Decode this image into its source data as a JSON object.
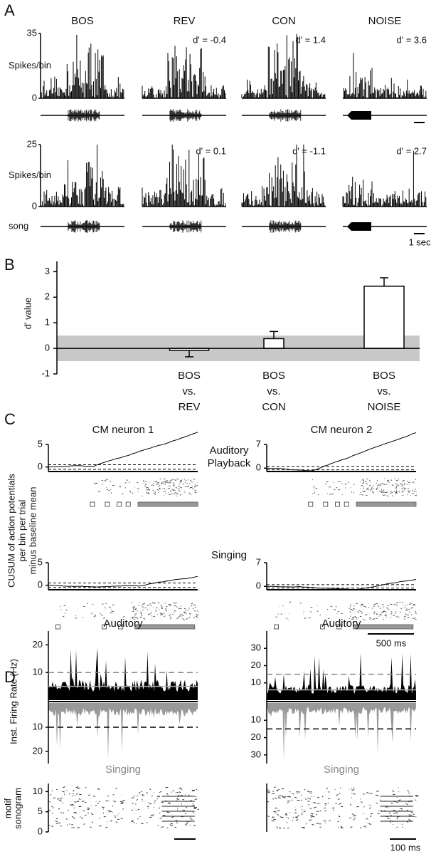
{
  "chart_data": [
    {
      "type": "psth-grid",
      "panel": "A",
      "stimuli": [
        "BOS",
        "REV",
        "CON",
        "NOISE"
      ],
      "rows": [
        {
          "ylabel": "Spikes/bin",
          "ylim": [
            0,
            35
          ],
          "yticks": [
            0,
            35
          ],
          "dprime_labels": [
            null,
            "d' = -0.4",
            "d' = 1.4",
            "d' = 3.6"
          ]
        },
        {
          "ylabel": "Spikes/bin",
          "ylim": [
            0,
            25
          ],
          "yticks": [
            0,
            25
          ],
          "dprime_labels": [
            null,
            "d' = 0.1",
            "d' = -1.1",
            "d' = 2.7"
          ]
        }
      ],
      "stimulus_label": "song",
      "scale_bar": "1 sec"
    },
    {
      "type": "bar",
      "panel": "B",
      "ylabel": "d' value",
      "categories": [
        [
          "BOS",
          "vs.",
          "REV"
        ],
        [
          "BOS",
          "vs.",
          "CON"
        ],
        [
          "BOS",
          "vs.",
          "NOISE"
        ]
      ],
      "values": [
        -0.08,
        0.38,
        2.43
      ],
      "errors": [
        0.25,
        0.28,
        0.33
      ],
      "ylim": [
        -1,
        3.4
      ],
      "yticks": [
        -1,
        0,
        1,
        2,
        3
      ],
      "band": [
        -0.5,
        0.5
      ],
      "color": "#ffffff",
      "band_color": "#c8c8c8"
    },
    {
      "type": "cusum",
      "panel": "C",
      "ylabel": [
        "CUSUM of action potentials",
        "per bin per trial",
        "minus baseline mean"
      ],
      "neurons": [
        {
          "title": "CM neuron 1",
          "ylim": [
            -1,
            5
          ],
          "yticks": [
            0,
            5
          ]
        },
        {
          "title": "CM neuron 2",
          "ylim": [
            -1,
            7
          ],
          "yticks": [
            0,
            7
          ]
        }
      ],
      "conditions": [
        [
          "Auditory",
          "Playback"
        ],
        [
          "Singing"
        ]
      ],
      "dashed_lines": [
        0.5,
        -0.5
      ],
      "scale_bar": "500 ms"
    },
    {
      "type": "firing-rate",
      "panel": "D",
      "ylabel": "Inst. Firing Rate (Hz)",
      "upper_label": "Auditory",
      "lower_label": "Singing",
      "neurons": [
        {
          "upper_ylim": [
            0,
            25
          ],
          "upper_yticks": [
            10,
            20
          ],
          "lower_ylim": [
            0,
            25
          ],
          "lower_yticks": [
            10,
            20
          ],
          "threshold": 10,
          "mean": 5
        },
        {
          "upper_ylim": [
            0,
            40
          ],
          "upper_yticks": [
            10,
            20,
            30
          ],
          "lower_ylim": [
            0,
            35
          ],
          "lower_yticks": [
            10,
            20,
            30
          ],
          "threshold": 15,
          "mean": 6
        }
      ],
      "sonogram": {
        "label": [
          "motif",
          "sonogram"
        ],
        "ylim": [
          0,
          12
        ],
        "yticks": [
          0,
          5,
          10
        ]
      },
      "scale_bar": "100 ms"
    }
  ]
}
